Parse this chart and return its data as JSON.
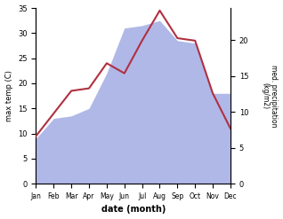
{
  "months": [
    "Jan",
    "Feb",
    "Mar",
    "Apr",
    "May",
    "Jun",
    "Jul",
    "Aug",
    "Sep",
    "Oct",
    "Nov",
    "Dec"
  ],
  "max_temp": [
    9.5,
    14.0,
    18.5,
    19.0,
    24.0,
    22.0,
    28.5,
    34.5,
    29.0,
    28.5,
    18.0,
    11.0
  ],
  "precip_as_temp": [
    9.0,
    13.0,
    13.5,
    15.0,
    22.0,
    31.0,
    31.5,
    32.5,
    28.5,
    28.0,
    18.0,
    18.0
  ],
  "temp_color": "#b03040",
  "precip_fill_color": "#b0b8e8",
  "temp_ylim": [
    0,
    35
  ],
  "precip_ylim": [
    0,
    24.5
  ],
  "xlabel": "date (month)",
  "ylabel_left": "max temp (C)",
  "ylabel_right": "med. precipitation\n(kg/m2)",
  "temp_yticks": [
    0,
    5,
    10,
    15,
    20,
    25,
    30,
    35
  ],
  "precip_yticks": [
    0,
    5,
    10,
    15,
    20
  ],
  "precip_ytick_labels": [
    "0",
    "5",
    "10",
    "15",
    "20"
  ]
}
